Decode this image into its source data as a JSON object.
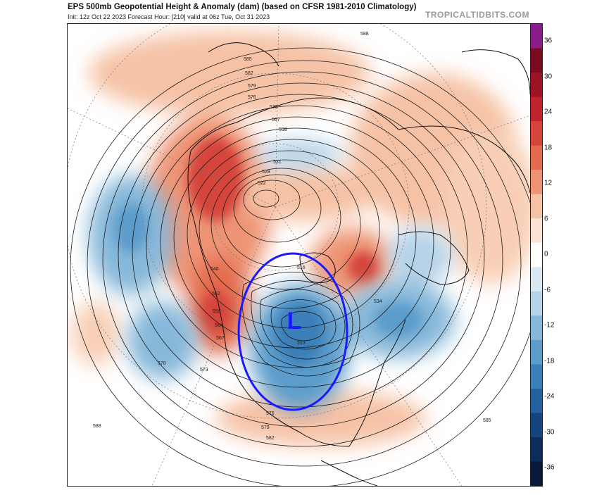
{
  "header": {
    "title": "EPS 500mb Geopotential Height & Anomaly (dam) (based on CFSR 1981-2010 Climatology)",
    "subtitle": "Init: 12z Oct 22 2023   Forecast Hour: [210]   valid at 06z Tue, Oct 31 2023",
    "brand": "TROPICALTIDBITS.COM"
  },
  "map": {
    "low_marker": "L",
    "low_circle_color": "#1a1aff",
    "contour_labels": [
      "585",
      "582",
      "579",
      "576",
      "573",
      "567",
      "558",
      "531",
      "528",
      "522",
      "588",
      "546",
      "552",
      "558",
      "564",
      "567",
      "570",
      "573",
      "516",
      "513",
      "534",
      "576",
      "579",
      "582",
      "585",
      "588"
    ]
  },
  "colorbar": {
    "ticks": [
      "36",
      "30",
      "24",
      "18",
      "12",
      "6",
      "0",
      "-6",
      "-12",
      "-18",
      "-24",
      "-30",
      "-36"
    ],
    "colors": [
      "#8b1a8b",
      "#7a0b20",
      "#9c1324",
      "#c0252f",
      "#d5453b",
      "#e26a4e",
      "#ee9474",
      "#f6c2a6",
      "#fbe3d4",
      "#ffffff",
      "#d8e7f2",
      "#b4d2e8",
      "#86b8da",
      "#5c9ccb",
      "#3a7fb8",
      "#2361a0",
      "#15457f",
      "#0c2c5c",
      "#08183a"
    ]
  }
}
